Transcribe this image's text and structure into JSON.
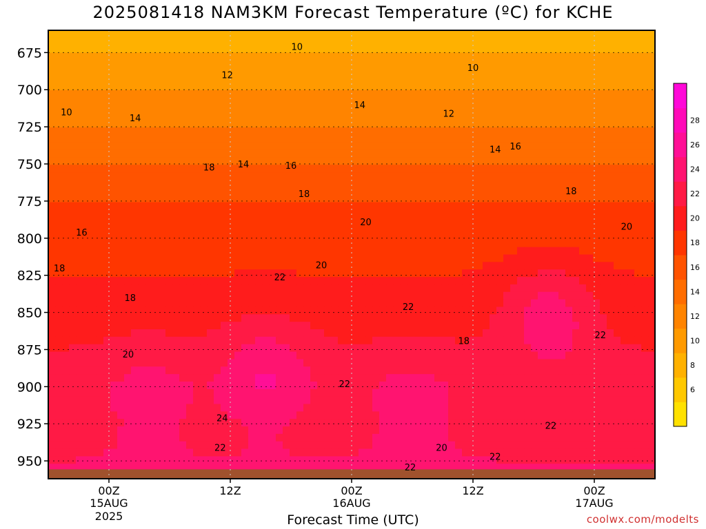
{
  "chart_data": {
    "type": "heatmap",
    "title": "2025081418 NAM3KM Forecast Temperature (ºC) for KCHE",
    "xlabel": "Forecast Time (UTC)",
    "ylabel": "",
    "credit": "coolwx.com/modelts",
    "x_ticks": [
      {
        "label": "00Z",
        "date": "15AUG",
        "year": "2025",
        "hours": 6
      },
      {
        "label": "12Z",
        "date": "",
        "year": "",
        "hours": 18
      },
      {
        "label": "00Z",
        "date": "16AUG",
        "year": "",
        "hours": 30
      },
      {
        "label": "12Z",
        "date": "",
        "year": "",
        "hours": 42
      },
      {
        "label": "00Z",
        "date": "17AUG",
        "year": "",
        "hours": 54
      }
    ],
    "x_range_hours": [
      0,
      60
    ],
    "y_ticks": [
      675,
      700,
      725,
      750,
      775,
      800,
      825,
      850,
      875,
      900,
      925,
      950
    ],
    "y_range_hpa": [
      660,
      962
    ],
    "terrain_top_hpa": 952,
    "colorbar": {
      "labels": [
        6,
        8,
        10,
        12,
        14,
        16,
        18,
        20,
        22,
        24,
        26,
        28
      ],
      "colors": [
        "#ffe100",
        "#ffc800",
        "#ffb100",
        "#ff9a00",
        "#ff8400",
        "#ff6d00",
        "#ff5300",
        "#ff3600",
        "#ff1c1c",
        "#ff1a45",
        "#ff1470",
        "#ff0f96",
        "#ff0ab8",
        "#ff08d8"
      ]
    },
    "background_band_color": "#ff9a00",
    "terrain_color": "#a0522d",
    "temperature_by_pressure": [
      {
        "pressure": 675,
        "temp": 10
      },
      {
        "pressure": 700,
        "temp": 12
      },
      {
        "pressure": 725,
        "temp": 14
      },
      {
        "pressure": 750,
        "temp": 16
      },
      {
        "pressure": 775,
        "temp": 18
      },
      {
        "pressure": 800,
        "temp": 19
      },
      {
        "pressure": 825,
        "temp": 20
      },
      {
        "pressure": 850,
        "temp": 21
      },
      {
        "pressure": 875,
        "temp": 22
      },
      {
        "pressure": 900,
        "temp": 23
      },
      {
        "pressure": 925,
        "temp": 23
      },
      {
        "pressure": 950,
        "temp": 24
      }
    ],
    "warm_cores": [
      {
        "hours": 10,
        "pressure": 905,
        "temp": 25
      },
      {
        "hours": 21.5,
        "pressure": 890,
        "temp": 26
      },
      {
        "hours": 36,
        "pressure": 910,
        "temp": 25
      },
      {
        "hours": 49.5,
        "pressure": 850,
        "temp": 25
      }
    ],
    "contour_labels": [
      {
        "text": "10",
        "hours": 24.6,
        "pressure": 671
      },
      {
        "text": "10",
        "hours": 42,
        "pressure": 685
      },
      {
        "text": "12",
        "hours": 17.7,
        "pressure": 690
      },
      {
        "text": "10",
        "hours": 1.8,
        "pressure": 715
      },
      {
        "text": "14",
        "hours": 8.6,
        "pressure": 719
      },
      {
        "text": "14",
        "hours": 30.8,
        "pressure": 710
      },
      {
        "text": "12",
        "hours": 39.6,
        "pressure": 716
      },
      {
        "text": "14",
        "hours": 44.2,
        "pressure": 740
      },
      {
        "text": "16",
        "hours": 46.2,
        "pressure": 738
      },
      {
        "text": "14",
        "hours": 19.3,
        "pressure": 750
      },
      {
        "text": "16",
        "hours": 24,
        "pressure": 751
      },
      {
        "text": "18",
        "hours": 15.9,
        "pressure": 752
      },
      {
        "text": "18",
        "hours": 25.3,
        "pressure": 770
      },
      {
        "text": "18",
        "hours": 51.7,
        "pressure": 768
      },
      {
        "text": "16",
        "hours": 3.3,
        "pressure": 796
      },
      {
        "text": "20",
        "hours": 31.4,
        "pressure": 789
      },
      {
        "text": "20",
        "hours": 57.2,
        "pressure": 792
      },
      {
        "text": "18",
        "hours": 1.1,
        "pressure": 820
      },
      {
        "text": "20",
        "hours": 27,
        "pressure": 818
      },
      {
        "text": "22",
        "hours": 22.9,
        "pressure": 826
      },
      {
        "text": "18",
        "hours": 8.1,
        "pressure": 840
      },
      {
        "text": "22",
        "hours": 35.6,
        "pressure": 846
      },
      {
        "text": "22",
        "hours": 54.6,
        "pressure": 865
      },
      {
        "text": "18",
        "hours": 41.1,
        "pressure": 869
      },
      {
        "text": "20",
        "hours": 7.9,
        "pressure": 878
      },
      {
        "text": "22",
        "hours": 29.3,
        "pressure": 898
      },
      {
        "text": "24",
        "hours": 17.2,
        "pressure": 921
      },
      {
        "text": "22",
        "hours": 49.7,
        "pressure": 926
      },
      {
        "text": "22",
        "hours": 17,
        "pressure": 941
      },
      {
        "text": "20",
        "hours": 38.9,
        "pressure": 941
      },
      {
        "text": "22",
        "hours": 44.2,
        "pressure": 947
      },
      {
        "text": "22",
        "hours": 35.8,
        "pressure": 954
      }
    ]
  }
}
